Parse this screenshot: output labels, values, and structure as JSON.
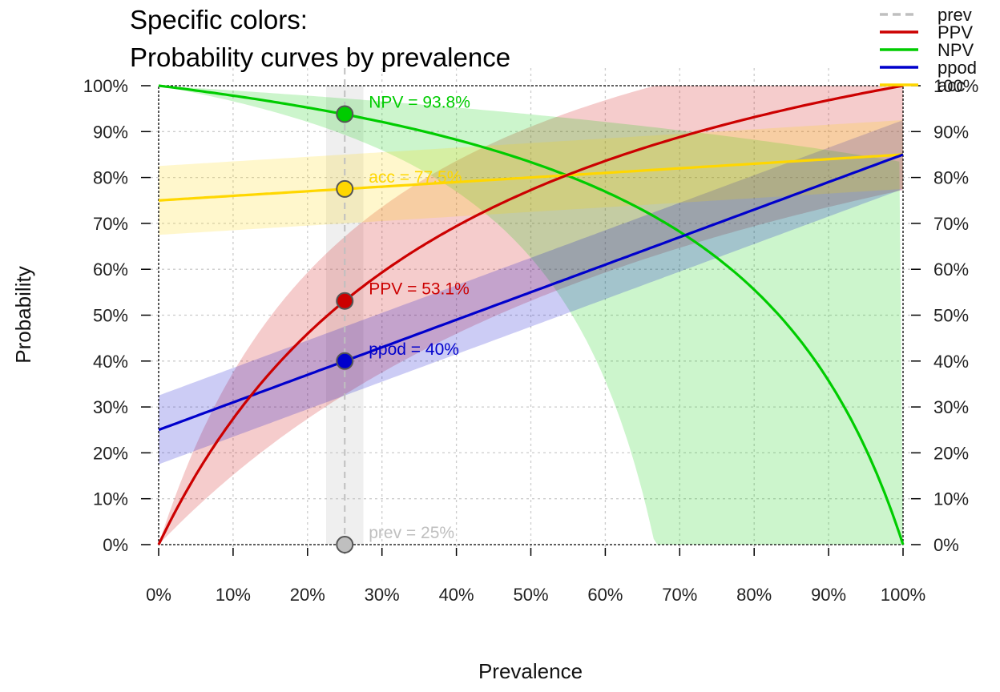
{
  "chart_data": {
    "type": "line",
    "title_line1": "Specific colors:",
    "title_line2": "Probability curves by prevalence",
    "xlabel": "Prevalence",
    "ylabel": "Probability",
    "xlim": [
      0,
      1
    ],
    "ylim": [
      0,
      1
    ],
    "x_ticks": [
      "0%",
      "10%",
      "20%",
      "30%",
      "40%",
      "50%",
      "60%",
      "70%",
      "80%",
      "90%",
      "100%"
    ],
    "y_ticks": [
      "0%",
      "10%",
      "20%",
      "30%",
      "40%",
      "50%",
      "60%",
      "70%",
      "80%",
      "90%",
      "100%"
    ],
    "grid": true,
    "legend_position": "top-right",
    "parameters": {
      "prev": 0.25,
      "sens": 0.85,
      "spec": 0.75
    },
    "uncertainty_band_halfwidth": 0.075,
    "series": [
      {
        "name": "prev",
        "key": "prev",
        "color": "#bfbfbf",
        "dashed": true
      },
      {
        "name": "PPV",
        "key": "ppv",
        "color": "#cc0000"
      },
      {
        "name": "NPV",
        "key": "npv",
        "color": "#00cc00"
      },
      {
        "name": "ppod",
        "key": "ppod",
        "color": "#0000cc"
      },
      {
        "name": "acc",
        "key": "acc",
        "color": "#ffd700"
      }
    ],
    "points": [
      {
        "key": "npv",
        "x": 0.25,
        "y": 0.938,
        "label": "NPV = 93.8%",
        "color": "#00cc00",
        "label_color": "#00cc00"
      },
      {
        "key": "acc",
        "x": 0.25,
        "y": 0.775,
        "label": "acc = 77.5%",
        "color": "#ffd700",
        "label_color": "#ffd700"
      },
      {
        "key": "ppv",
        "x": 0.25,
        "y": 0.531,
        "label": "PPV = 53.1%",
        "color": "#cc0000",
        "label_color": "#cc0000"
      },
      {
        "key": "ppod",
        "x": 0.25,
        "y": 0.4,
        "label": "ppod = 40%",
        "color": "#0000cc",
        "label_color": "#0000cc"
      },
      {
        "key": "prev",
        "x": 0.25,
        "y": 0.0,
        "label": "prev = 25%",
        "color": "#bfbfbf",
        "label_color": "#bfbfbf"
      }
    ]
  }
}
